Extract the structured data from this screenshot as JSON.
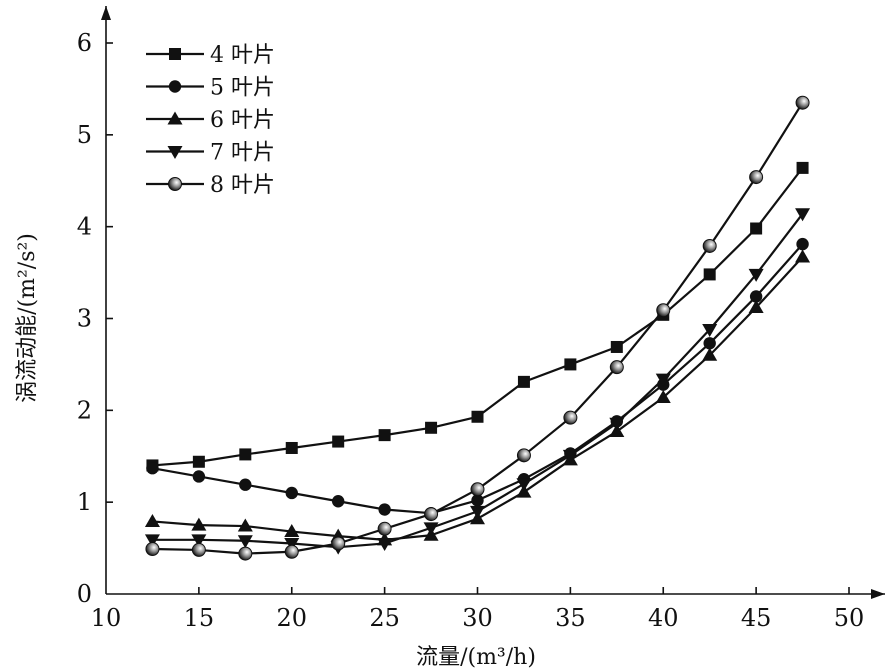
{
  "chart_data": {
    "type": "line",
    "xlabel": "流量/(m³/h)",
    "ylabel": "涡流动能/(m²/s²)",
    "xlim": [
      10,
      50
    ],
    "ylim": [
      0,
      6.5
    ],
    "xticks": [
      10,
      15,
      20,
      25,
      30,
      35,
      40,
      45,
      50
    ],
    "yticks": [
      0,
      1,
      2,
      3,
      4,
      5,
      6
    ],
    "grid": false,
    "legend_position": "top-left",
    "x": [
      12.5,
      15,
      17.5,
      20,
      22.5,
      25,
      27.5,
      30,
      32.5,
      35,
      37.5,
      40,
      42.5,
      45,
      47.5
    ],
    "series": [
      {
        "name": "4 叶片",
        "marker": "square",
        "values": [
          1.4,
          1.44,
          1.52,
          1.59,
          1.66,
          1.73,
          1.81,
          1.93,
          2.31,
          2.5,
          2.69,
          3.04,
          3.48,
          3.98,
          4.64
        ]
      },
      {
        "name": "5 叶片",
        "marker": "circle",
        "values": [
          1.37,
          1.28,
          1.19,
          1.1,
          1.01,
          0.92,
          0.88,
          1.02,
          1.25,
          1.53,
          1.88,
          2.28,
          2.73,
          3.24,
          3.81
        ]
      },
      {
        "name": "6 叶片",
        "marker": "triangle-up",
        "values": [
          0.79,
          0.75,
          0.74,
          0.68,
          0.63,
          0.59,
          0.64,
          0.82,
          1.11,
          1.46,
          1.77,
          2.14,
          2.6,
          3.12,
          3.67
        ]
      },
      {
        "name": "7 叶片",
        "marker": "triangle-down",
        "values": [
          0.59,
          0.59,
          0.58,
          0.55,
          0.51,
          0.55,
          0.72,
          0.9,
          1.2,
          1.51,
          1.86,
          2.34,
          2.88,
          3.48,
          4.14
        ]
      },
      {
        "name": "8 叶片",
        "marker": "shaded-circle",
        "values": [
          0.49,
          0.48,
          0.44,
          0.46,
          0.55,
          0.71,
          0.87,
          1.14,
          1.51,
          1.92,
          2.47,
          3.09,
          3.79,
          4.54,
          5.35
        ]
      }
    ]
  }
}
